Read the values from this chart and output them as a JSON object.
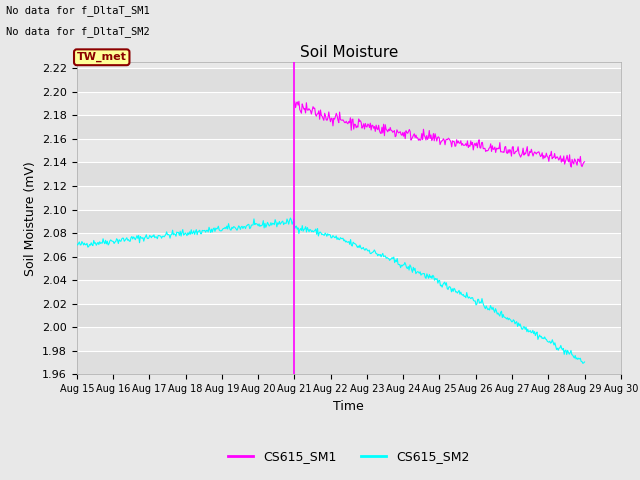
{
  "title": "Soil Moisture",
  "ylabel": "Soil Moisture (mV)",
  "xlabel": "Time",
  "ylim": [
    1.96,
    2.225
  ],
  "yticks": [
    1.96,
    1.98,
    2.0,
    2.02,
    2.04,
    2.06,
    2.08,
    2.1,
    2.12,
    2.14,
    2.16,
    2.18,
    2.2,
    2.22
  ],
  "xlim_days": [
    0,
    15
  ],
  "xtick_labels": [
    "Aug 15",
    "Aug 16",
    "Aug 17",
    "Aug 18",
    "Aug 19",
    "Aug 20",
    "Aug 21",
    "Aug 22",
    "Aug 23",
    "Aug 24",
    "Aug 25",
    "Aug 26",
    "Aug 27",
    "Aug 28",
    "Aug 29",
    "Aug 30"
  ],
  "color_sm1": "#FF00FF",
  "color_sm2": "#00FFFF",
  "background_color": "#E8E8E8",
  "plot_bg_light": "#EBEBEB",
  "plot_bg_dark": "#DCDCDC",
  "no_data_text1": "No data for f_DltaT_SM1",
  "no_data_text2": "No data for f_DltaT_SM2",
  "tw_met_label": "TW_met",
  "tw_met_bg": "#FFFF99",
  "tw_met_fg": "#8B0000",
  "vertical_line_day": 6.0,
  "legend_labels": [
    "CS615_SM1",
    "CS615_SM2"
  ]
}
